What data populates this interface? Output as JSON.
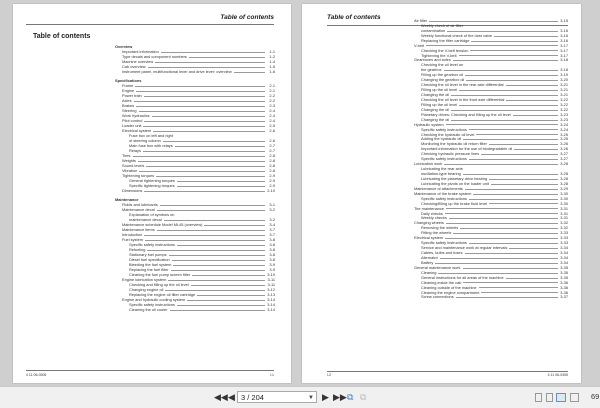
{
  "viewer": {
    "page_value": "3 / 204",
    "zoom": "69",
    "icons": [
      "first-page-icon",
      "prev-page-icon",
      "next-page-icon",
      "last-page-icon",
      "copy-icon",
      "paste-icon",
      "single-page-view-icon",
      "continuous-view-icon",
      "two-page-view-icon",
      "two-page-continuous-view-icon"
    ]
  },
  "left_page": {
    "header": "Table of contents",
    "title": "Table of contents",
    "footer_left": "4 11 06-0305",
    "footer_right": "I-1",
    "sections": [
      {
        "heading": "Overview",
        "items": [
          {
            "t": "Important information",
            "p": "1-1",
            "l": 1
          },
          {
            "t": "Type decals and component numbers",
            "p": "1-2",
            "l": 1
          },
          {
            "t": "Machine overview",
            "p": "1-4",
            "l": 1
          },
          {
            "t": "Cab overview",
            "p": "1-5",
            "l": 1
          },
          {
            "t": "Instrument panel, multifunctional lever and drive lever: overview",
            "p": "1-6",
            "l": 1
          }
        ]
      },
      {
        "heading": "Specifications",
        "items": [
          {
            "t": "Frame",
            "p": "2-1",
            "l": 1
          },
          {
            "t": "Engine",
            "p": "2-1",
            "l": 1
          },
          {
            "t": "Power train",
            "p": "2-2",
            "l": 1
          },
          {
            "t": "Axles",
            "p": "2-2",
            "l": 1
          },
          {
            "t": "Brakes",
            "p": "2-3",
            "l": 1
          },
          {
            "t": "Steering",
            "p": "2-4",
            "l": 1
          },
          {
            "t": "Work hydraulics",
            "p": "2-4",
            "l": 1
          },
          {
            "t": "Pilot control",
            "p": "2-4",
            "l": 1
          },
          {
            "t": "Loader unit",
            "p": "2-5",
            "l": 1
          },
          {
            "t": "Electrical system",
            "p": "2-6",
            "l": 1
          },
          {
            "t": "Fuse box on left and right",
            "p": "",
            "l": 2
          },
          {
            "t": "of steering column",
            "p": "2-6",
            "l": 2
          },
          {
            "t": "Main fuse box with relays",
            "p": "2-7",
            "l": 2
          },
          {
            "t": "Relays",
            "p": "2-7",
            "l": 2
          },
          {
            "t": "Tires",
            "p": "2-8",
            "l": 1
          },
          {
            "t": "Weights",
            "p": "2-8",
            "l": 1
          },
          {
            "t": "Sound levels",
            "p": "2-8",
            "l": 1
          },
          {
            "t": "Vibration",
            "p": "2-8",
            "l": 1
          },
          {
            "t": "Tightening torques",
            "p": "2-9",
            "l": 1
          },
          {
            "t": "General tightening torques",
            "p": "2-9",
            "l": 2
          },
          {
            "t": "Specific tightening torques",
            "p": "2-9",
            "l": 2
          },
          {
            "t": "Dimensions",
            "p": "2-10",
            "l": 1
          }
        ]
      },
      {
        "heading": "Maintenance",
        "items": [
          {
            "t": "Fluids and lubricants",
            "p": "3-1",
            "l": 1
          },
          {
            "t": "Maintenance decal",
            "p": "3-2",
            "l": 1
          },
          {
            "t": "Explanation of symbols on",
            "p": "",
            "l": 2
          },
          {
            "t": "maintenance decal",
            "p": "3-2",
            "l": 2
          },
          {
            "t": "Maintenance schedule Model ML45 (overview)",
            "p": "3-4",
            "l": 1
          },
          {
            "t": "Maintenance items",
            "p": "3-7",
            "l": 1
          },
          {
            "t": "Introduction",
            "p": "3-7",
            "l": 1
          },
          {
            "t": "Fuel system",
            "p": "3-8",
            "l": 1
          },
          {
            "t": "Specific safety instructions",
            "p": "3-8",
            "l": 2
          },
          {
            "t": "Refueling",
            "p": "3-8",
            "l": 2
          },
          {
            "t": "Stationary fuel pumps",
            "p": "3-8",
            "l": 2
          },
          {
            "t": "Diesel fuel specification",
            "p": "3-8",
            "l": 2
          },
          {
            "t": "Bleeding the fuel system",
            "p": "3-9",
            "l": 2
          },
          {
            "t": "Replacing the fuel filter",
            "p": "3-9",
            "l": 2
          },
          {
            "t": "Cleaning the fuel pump screen filter",
            "p": "3-10",
            "l": 2
          },
          {
            "t": "Engine lubrication system",
            "p": "3-11",
            "l": 1
          },
          {
            "t": "Checking and filling up the oil level",
            "p": "3-11",
            "l": 2
          },
          {
            "t": "Changing engine oil",
            "p": "3-12",
            "l": 2
          },
          {
            "t": "Replacing the engine oil filter cartridge",
            "p": "3-13",
            "l": 2
          },
          {
            "t": "Engine and hydraulic cooling system",
            "p": "3-14",
            "l": 1
          },
          {
            "t": "Specific safety instructions",
            "p": "3-14",
            "l": 2
          },
          {
            "t": "Cleaning the oil cooler",
            "p": "3-14",
            "l": 2
          }
        ]
      }
    ]
  },
  "right_page": {
    "header": "Table of contents",
    "footer_left": "I-2",
    "footer_right": "4 11 06-0305",
    "items": [
      {
        "t": "Air filter",
        "p": "3-15",
        "l": 1
      },
      {
        "t": "Weekly check of air filter",
        "p": "",
        "l": 2
      },
      {
        "t": "contamination",
        "p": "3-16",
        "l": 2
      },
      {
        "t": "Weekly functional check of the dust valve",
        "p": "3-16",
        "l": 2
      },
      {
        "t": "Replacing the filter cartridge",
        "p": "3-16",
        "l": 2
      },
      {
        "t": "V-belt",
        "p": "3-17",
        "l": 1
      },
      {
        "t": "Checking the V-belt tension",
        "p": "3-17",
        "l": 2
      },
      {
        "t": "Tightening the V-belt",
        "p": "3-17",
        "l": 2
      },
      {
        "t": "Gearboxes and axles",
        "p": "3-18",
        "l": 1
      },
      {
        "t": "Checking the oil level on",
        "p": "",
        "l": 2
      },
      {
        "t": "the gearbox",
        "p": "3-18",
        "l": 2
      },
      {
        "t": "Filling up the gearbox oil",
        "p": "3-19",
        "l": 2
      },
      {
        "t": "Changing the gearbox oil",
        "p": "3-20",
        "l": 2
      },
      {
        "t": "Checking the oil level in the rear axle differential",
        "p": "3-21",
        "l": 2
      },
      {
        "t": "Filling up the oil level",
        "p": "3-21",
        "l": 2
      },
      {
        "t": "Changing the oil",
        "p": "3-21",
        "l": 2
      },
      {
        "t": "Checking the oil level in the front axle differential",
        "p": "3-22",
        "l": 2
      },
      {
        "t": "Filling up the oil level",
        "p": "3-22",
        "l": 2
      },
      {
        "t": "Changing the oil",
        "p": "3-22",
        "l": 2
      },
      {
        "t": "Planetary drives: Checking and filling up the oil level",
        "p": "3-23",
        "l": 2
      },
      {
        "t": "Changing the oil",
        "p": "3-23",
        "l": 2
      },
      {
        "t": "Hydraulic system",
        "p": "3-24",
        "l": 1
      },
      {
        "t": "Specific safety instructions",
        "p": "3-24",
        "l": 2
      },
      {
        "t": "Checking the hydraulic oil level",
        "p": "3-25",
        "l": 2
      },
      {
        "t": "Adding the hydraulic oil",
        "p": "3-25",
        "l": 2
      },
      {
        "t": "Monitoring the hydraulic oil return filter",
        "p": "3-26",
        "l": 2
      },
      {
        "t": "Important information for the use of biodegradable oil",
        "p": "3-26",
        "l": 2
      },
      {
        "t": "Checking hydraulic pressure lines",
        "p": "3-27",
        "l": 2
      },
      {
        "t": "Specific safety instructions",
        "p": "3-27",
        "l": 2
      },
      {
        "t": "Lubrication work",
        "p": "3-28",
        "l": 1
      },
      {
        "t": "Lubricating the rear axle",
        "p": "",
        "l": 2
      },
      {
        "t": "oscillation-type bearing",
        "p": "3-28",
        "l": 2
      },
      {
        "t": "Lubricating the planetary drive bearing",
        "p": "3-28",
        "l": 2
      },
      {
        "t": "Lubricating the pivots on the loader unit",
        "p": "3-28",
        "l": 2
      },
      {
        "t": "Maintenance of attachments",
        "p": "3-29",
        "l": 1
      },
      {
        "t": "Maintenance of the brake system",
        "p": "3-30",
        "l": 1
      },
      {
        "t": "Specific safety instructions",
        "p": "3-30",
        "l": 2
      },
      {
        "t": "Checking/filling up the brake fluid level",
        "p": "3-30",
        "l": 2
      },
      {
        "t": "Tire maintenance",
        "p": "3-31",
        "l": 1
      },
      {
        "t": "Daily checks",
        "p": "3-31",
        "l": 2
      },
      {
        "t": "Weekly checks",
        "p": "3-31",
        "l": 2
      },
      {
        "t": "Changing wheels",
        "p": "3-32",
        "l": 1
      },
      {
        "t": "Removing the wheels",
        "p": "3-32",
        "l": 2
      },
      {
        "t": "Fitting the wheels",
        "p": "3-33",
        "l": 2
      },
      {
        "t": "Electrical system",
        "p": "3-33",
        "l": 1
      },
      {
        "t": "Specific safety instructions",
        "p": "3-33",
        "l": 2
      },
      {
        "t": "Service and maintenance work at regular intervals",
        "p": "3-34",
        "l": 2
      },
      {
        "t": "Cables, bulbs and fuses",
        "p": "3-34",
        "l": 2
      },
      {
        "t": "Alternator",
        "p": "3-34",
        "l": 2
      },
      {
        "t": "Battery",
        "p": "3-34",
        "l": 2
      },
      {
        "t": "General maintenance work",
        "p": "3-35",
        "l": 1
      },
      {
        "t": "Cleaning",
        "p": "3-35",
        "l": 2
      },
      {
        "t": "General instructions for all areas of the machine",
        "p": "3-35",
        "l": 2
      },
      {
        "t": "Cleaning inside the cab",
        "p": "3-36",
        "l": 2
      },
      {
        "t": "Cleaning outside of the machine",
        "p": "3-36",
        "l": 2
      },
      {
        "t": "Cleaning the engine compartment",
        "p": "3-36",
        "l": 2
      },
      {
        "t": "Screw connections",
        "p": "3-37",
        "l": 2
      }
    ]
  }
}
